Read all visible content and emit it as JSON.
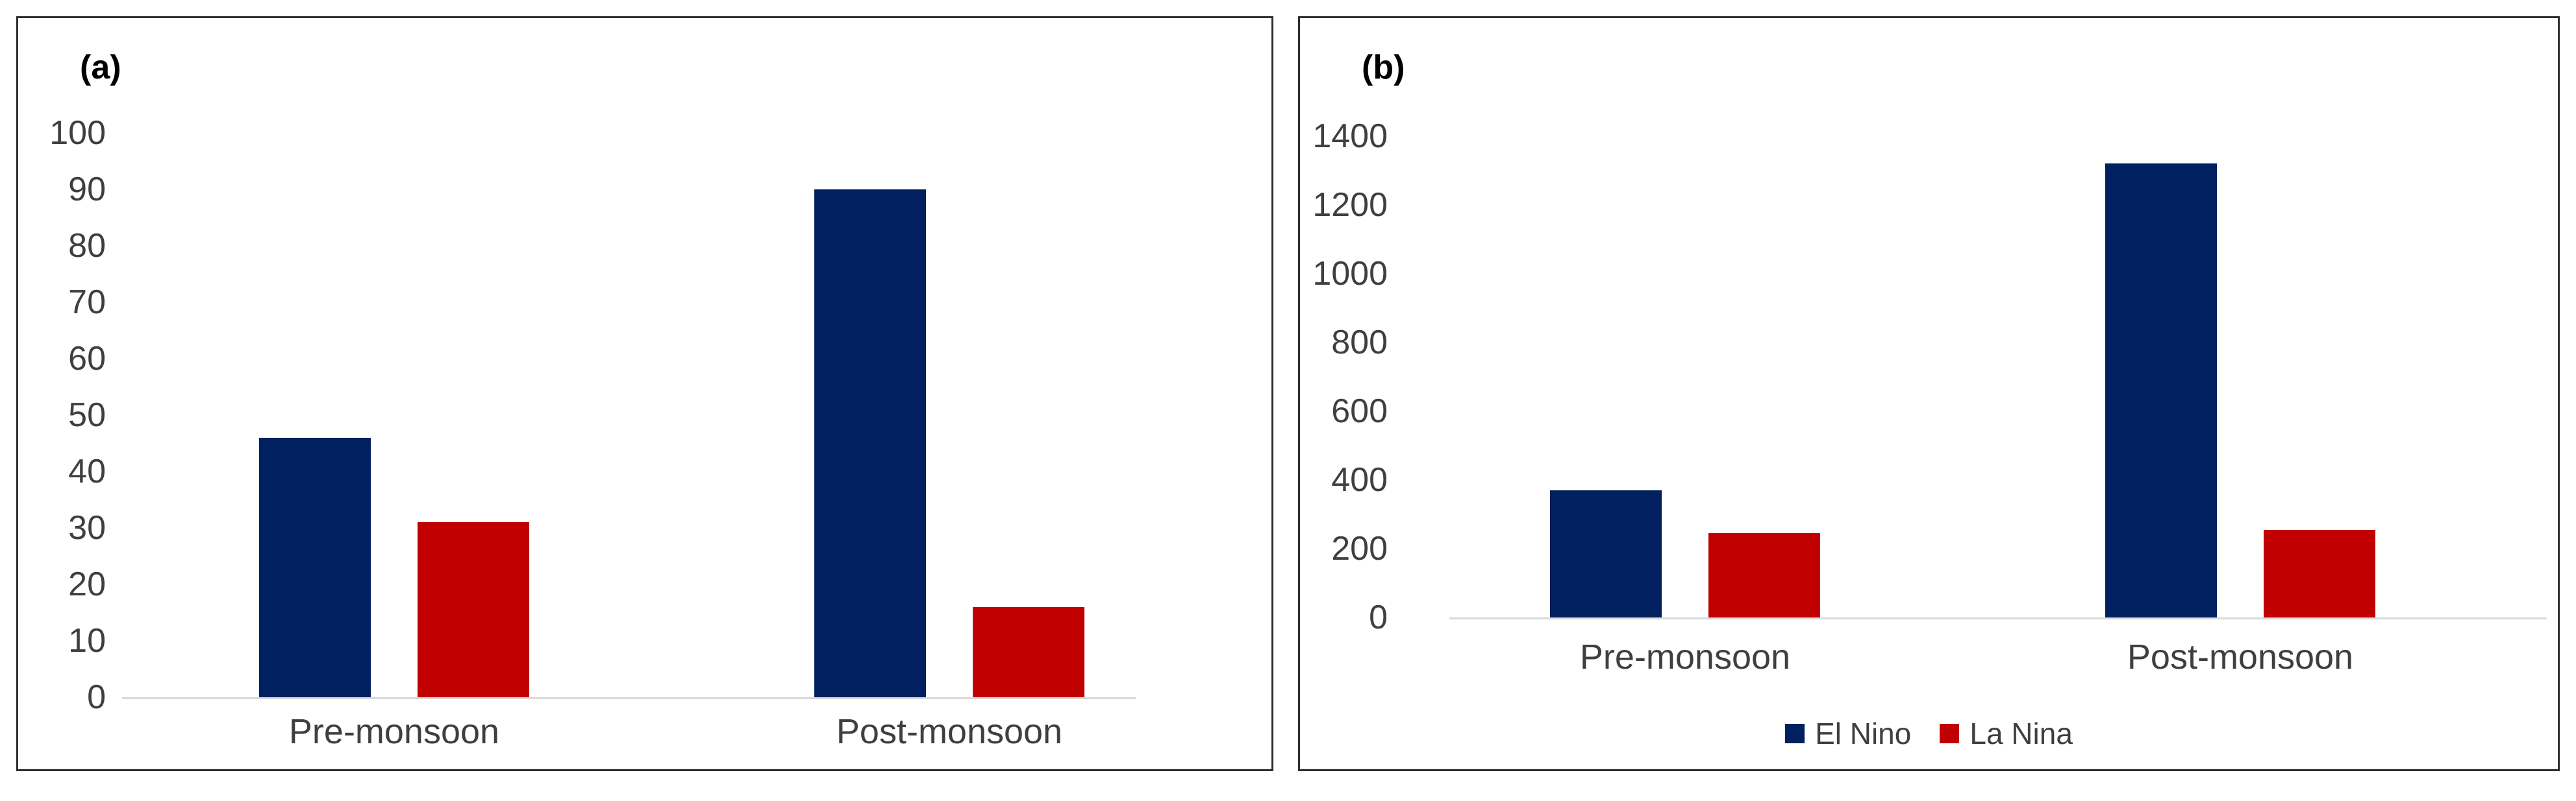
{
  "colors": {
    "el_nino": "#002060",
    "la_nina": "#c00000",
    "axis_line": "#d9d9d9",
    "tick_text": "#3f3f3f",
    "panel_border": "#2e2e2e",
    "background": "#ffffff"
  },
  "chart_data": [
    {
      "type": "bar",
      "panel_label": "(a)",
      "title": "",
      "xlabel": "",
      "ylabel": "",
      "categories": [
        "Pre-monsoon",
        "Post-monsoon"
      ],
      "series": [
        {
          "name": "El Nino",
          "color": "#002060",
          "values": [
            46,
            90
          ]
        },
        {
          "name": "La Nina",
          "color": "#c00000",
          "values": [
            31,
            16
          ]
        }
      ],
      "ylim": [
        0,
        100
      ],
      "yticks": [
        0,
        10,
        20,
        30,
        40,
        50,
        60,
        70,
        80,
        90,
        100
      ],
      "grid": false,
      "legend_position": "none"
    },
    {
      "type": "bar",
      "panel_label": "(b)",
      "title": "",
      "xlabel": "",
      "ylabel": "",
      "categories": [
        "Pre-monsoon",
        "Post-monsoon"
      ],
      "series": [
        {
          "name": "El Nino",
          "color": "#002060",
          "values": [
            370,
            1320
          ]
        },
        {
          "name": "La Nina",
          "color": "#c00000",
          "values": [
            245,
            255
          ]
        }
      ],
      "ylim": [
        0,
        1400
      ],
      "yticks": [
        0,
        200,
        400,
        600,
        800,
        1000,
        1200,
        1400
      ],
      "grid": false,
      "legend_position": "bottom"
    }
  ]
}
